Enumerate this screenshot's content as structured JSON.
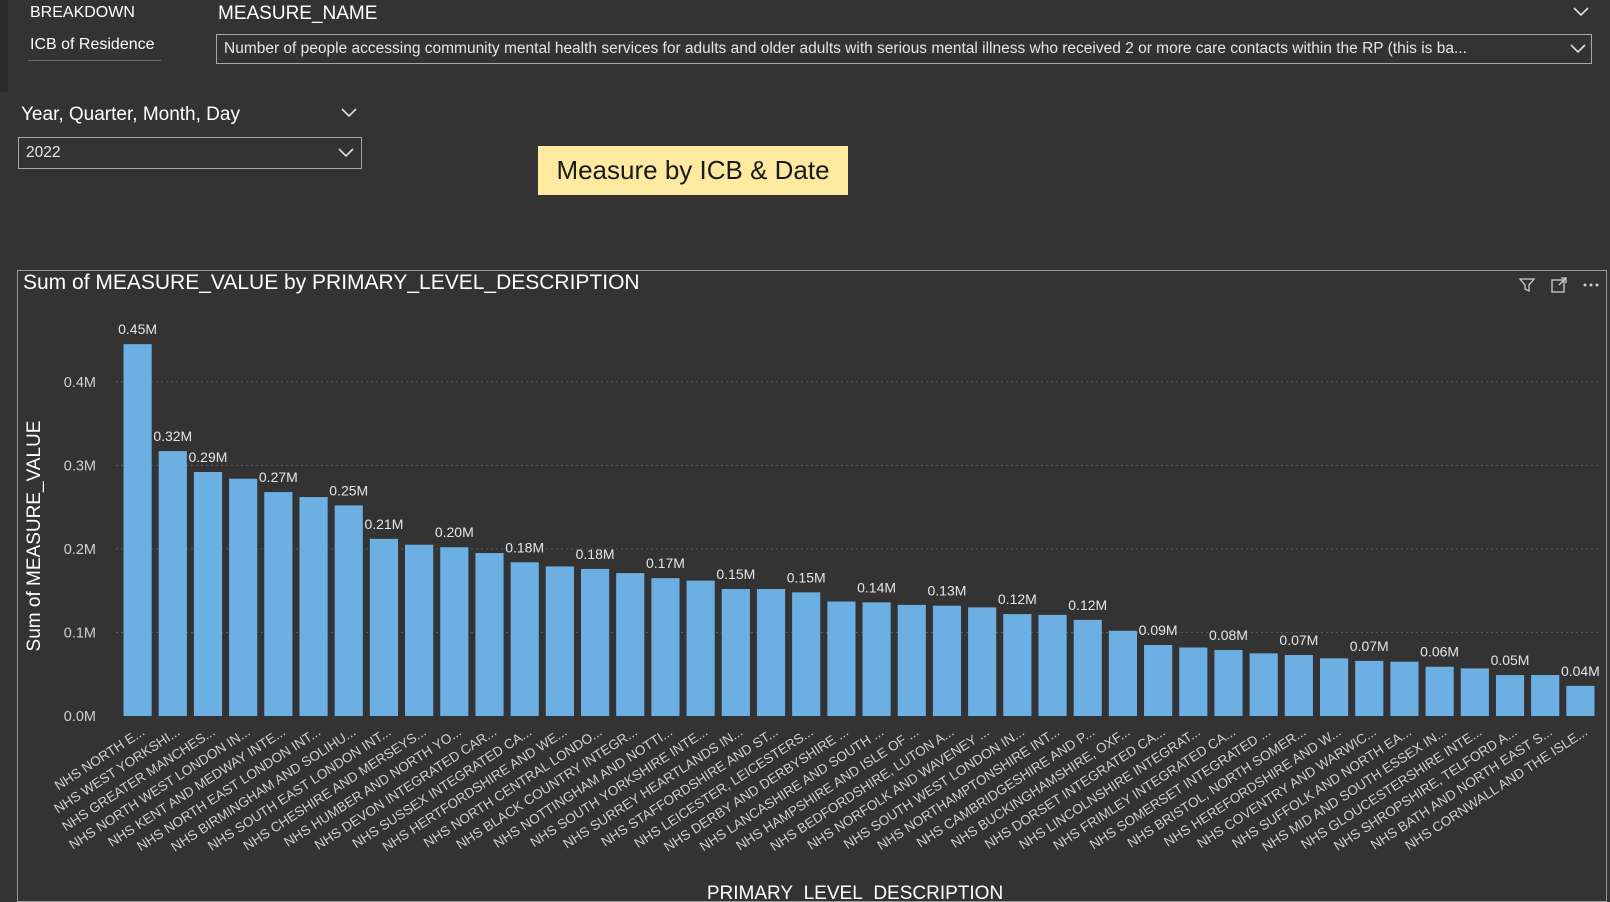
{
  "breakdown": {
    "title": "BREAKDOWN",
    "selected": "ICB of Residence"
  },
  "measure_name": {
    "title": "MEASURE_NAME",
    "value": "Number of people accessing community mental health services for adults and older adults with serious mental illness who received 2 or more care contacts within the RP (this is ba..."
  },
  "date_filter": {
    "title": "Year, Quarter, Month, Day",
    "value": "2022"
  },
  "banner": {
    "text": "Measure by ICB & Date"
  },
  "icons": {
    "filter": "filter-icon",
    "focus": "focus-mode-icon",
    "more": "more-options-icon",
    "chevron": "chevron-down-icon"
  },
  "colors": {
    "bar": "#6cb0e3",
    "background": "#333333",
    "banner": "#fde9a0"
  },
  "chart_data": {
    "type": "bar",
    "title": "Sum of MEASURE_VALUE by PRIMARY_LEVEL_DESCRIPTION",
    "xlabel": "PRIMARY_LEVEL_DESCRIPTION",
    "ylabel": "Sum of MEASURE_VALUE",
    "ylim": [
      0,
      0.45
    ],
    "yticks": [
      0,
      0.1,
      0.2,
      0.3,
      0.4
    ],
    "ytick_labels": [
      "0.0M",
      "0.1M",
      "0.2M",
      "0.3M",
      "0.4M"
    ],
    "grid": true,
    "categories": [
      "NHS NORTH E...",
      "NHS WEST YORKSHI...",
      "NHS GREATER MANCHES...",
      "NHS NORTH WEST LONDON IN...",
      "NHS KENT AND MEDWAY INTE...",
      "NHS NORTH EAST LONDON INT...",
      "NHS BIRMINGHAM AND SOLIHU...",
      "NHS SOUTH EAST LONDON INT...",
      "NHS CHESHIRE AND MERSEYS...",
      "NHS HUMBER AND NORTH YO...",
      "NHS DEVON INTEGRATED CAR...",
      "NHS SUSSEX INTEGRATED CA...",
      "NHS HERTFORDSHIRE AND WE...",
      "NHS NORTH CENTRAL LONDO...",
      "NHS BLACK COUNTRY INTEGR...",
      "NHS NOTTINGHAM AND NOTTI...",
      "NHS SOUTH YORKSHIRE INTE...",
      "NHS SURREY HEARTLANDS IN...",
      "NHS STAFFORDSHIRE AND ST...",
      "NHS LEICESTER, LEICESTERS...",
      "NHS DERBY AND DERBYSHIRE ...",
      "NHS LANCASHIRE AND SOUTH ...",
      "NHS HAMPSHIRE AND ISLE OF ...",
      "NHS BEDFORDSHIRE, LUTON A...",
      "NHS NORFOLK AND WAVENEY ...",
      "NHS SOUTH WEST LONDON IN...",
      "NHS NORTHAMPTONSHIRE INT...",
      "NHS CAMBRIDGESHIRE AND P...",
      "NHS BUCKINGHAMSHIRE, OXF...",
      "NHS DORSET INTEGRATED CA...",
      "NHS LINCOLNSHIRE INTEGRAT...",
      "NHS FRIMLEY INTEGRATED CA...",
      "NHS SOMERSET INTEGRATED ...",
      "NHS BRISTOL, NORTH SOMER...",
      "NHS HEREFORDSHIRE AND W...",
      "NHS COVENTRY AND WARWIC...",
      "NHS SUFFOLK AND NORTH EA...",
      "NHS MID AND SOUTH ESSEX IN...",
      "NHS GLOUCESTERSHIRE INTE...",
      "NHS SHROPSHIRE, TELFORD A...",
      "NHS BATH AND NORTH EAST S...",
      "NHS CORNWALL AND THE ISLE..."
    ],
    "values": [
      0.445,
      0.317,
      0.292,
      0.284,
      0.268,
      0.262,
      0.252,
      0.212,
      0.205,
      0.202,
      0.195,
      0.184,
      0.179,
      0.176,
      0.171,
      0.165,
      0.162,
      0.152,
      0.152,
      0.148,
      0.137,
      0.136,
      0.133,
      0.132,
      0.13,
      0.122,
      0.121,
      0.115,
      0.102,
      0.085,
      0.082,
      0.079,
      0.075,
      0.073,
      0.069,
      0.066,
      0.065,
      0.059,
      0.057,
      0.049,
      0.049,
      0.036
    ],
    "data_labels": [
      "0.45M",
      "0.32M",
      "0.29M",
      "",
      "0.27M",
      "",
      "0.25M",
      "0.21M",
      "",
      "0.20M",
      "",
      "0.18M",
      "",
      "0.18M",
      "",
      "0.17M",
      "",
      "0.15M",
      "",
      "0.15M",
      "",
      "0.14M",
      "",
      "0.13M",
      "",
      "0.12M",
      "",
      "0.12M",
      "",
      "0.09M",
      "",
      "0.08M",
      "",
      "0.07M",
      "",
      "0.07M",
      "",
      "0.06M",
      "",
      "0.05M",
      "",
      "0.04M"
    ]
  }
}
